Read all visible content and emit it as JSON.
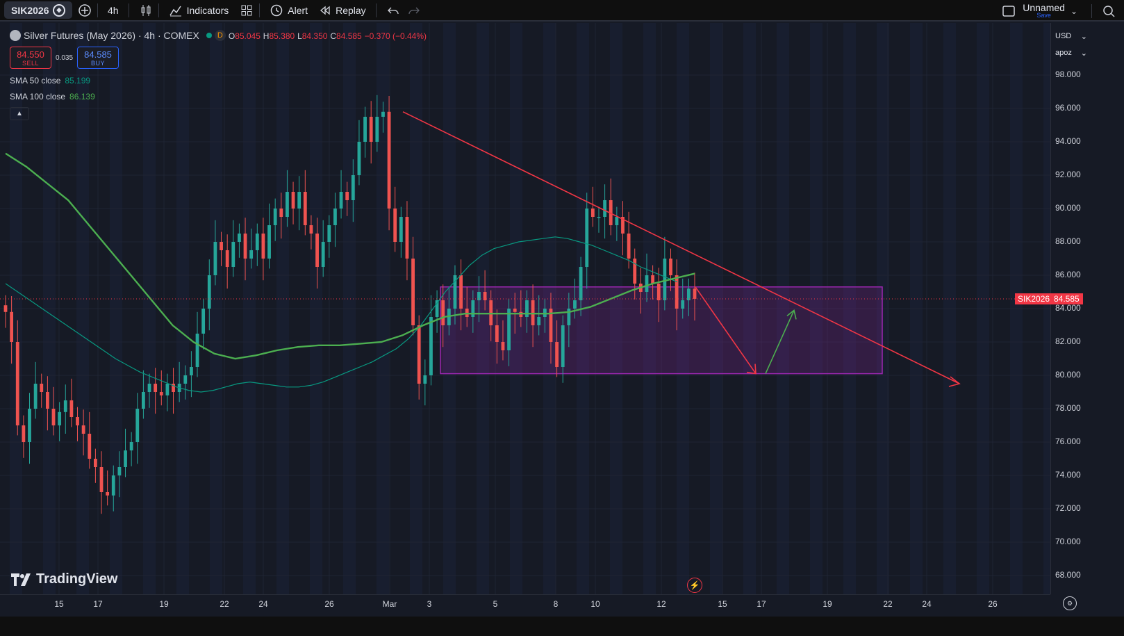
{
  "toolbar": {
    "symbol": "SIK2026",
    "interval": "4h",
    "indicators_label": "Indicators",
    "alert_label": "Alert",
    "replay_label": "Replay",
    "layout_name": "Unnamed",
    "layout_save": "Save"
  },
  "legend": {
    "title": "Silver Futures (May 2026) · 4h · COMEX",
    "market_status_badge": "D",
    "open_label": "O",
    "open": "85.045",
    "high_label": "H",
    "high": "85.380",
    "low_label": "L",
    "low": "84.350",
    "close_label": "C",
    "close": "84.585",
    "change": "−0.370 (−0.44%)",
    "sell_price": "84.550",
    "sell_label": "SELL",
    "spread": "0.035",
    "buy_price": "84.585",
    "buy_label": "BUY",
    "sma50_label": "SMA 50 close",
    "sma50_value": "85.199",
    "sma100_label": "SMA 100 close",
    "sma100_value": "86.139",
    "collapse_icon": "chevron-up-icon"
  },
  "right_axis": {
    "currency": "USD",
    "scale_mode": "apoz",
    "ticks": [
      "98.000",
      "96.000",
      "94.000",
      "92.000",
      "90.000",
      "88.000",
      "86.000",
      "84.000",
      "82.000",
      "80.000",
      "78.000",
      "76.000",
      "74.000",
      "72.000",
      "70.000",
      "68.000"
    ],
    "symbol_tag": "SIK2026",
    "last_price_tag": "84.585"
  },
  "bottom_axis": {
    "ticks": [
      "15",
      "17",
      "19",
      "22",
      "24",
      "26",
      "Mar",
      "3",
      "5",
      "8",
      "10",
      "12",
      "15",
      "17",
      "19",
      "22",
      "24",
      "26"
    ]
  },
  "branding": {
    "name": "TradingView"
  },
  "colors": {
    "background": "#161a25",
    "up": "#26a69a",
    "down": "#ef5350",
    "sma50": "#089981",
    "sma100": "#4caf50",
    "trendline": "#f23645",
    "range_box": "#9c27b0",
    "projection_up": "#4caf50"
  },
  "chart_data": {
    "type": "candlestick",
    "symbol": "SIK2026",
    "interval": "4h",
    "ylim": [
      67,
      99
    ],
    "x_ticks": [
      "15",
      "17",
      "19",
      "22",
      "24",
      "26",
      "Mar",
      "3",
      "5",
      "8",
      "10",
      "12",
      "15",
      "17",
      "19",
      "22",
      "24",
      "26"
    ],
    "last_price": 84.585,
    "candles_close": [
      83.8,
      82.0,
      77.0,
      76.0,
      78.0,
      79.5,
      79.0,
      78.0,
      77.0,
      77.8,
      78.5,
      77.5,
      77.0,
      76.5,
      75.0,
      74.5,
      73.0,
      72.8,
      74.0,
      74.5,
      75.5,
      76.0,
      78.0,
      79.0,
      79.5,
      79.0,
      78.8,
      79.5,
      79.0,
      79.5,
      80.0,
      80.5,
      82.5,
      84.0,
      86.0,
      88.0,
      87.5,
      86.5,
      88.0,
      88.5,
      87.0,
      87.5,
      88.5,
      87.0,
      89.0,
      90.0,
      89.5,
      91.0,
      90.0,
      91.0,
      89.0,
      88.5,
      86.5,
      88.0,
      89.0,
      90.0,
      91.0,
      90.5,
      92.0,
      94.0,
      95.5,
      94.0,
      95.5,
      95.8,
      90.0,
      88.0,
      89.5,
      87.0,
      83.0,
      79.5,
      80.0,
      83.5,
      84.5,
      83.0,
      84.0,
      86.0,
      84.0,
      83.5,
      84.5,
      85.0,
      84.5,
      83.0,
      82.0,
      81.5,
      84.0,
      83.8,
      83.5,
      84.5,
      83.0,
      83.5,
      84.0,
      82.0,
      80.5,
      83.0,
      84.0,
      84.5,
      86.5,
      90.0,
      89.5,
      89.5,
      90.5,
      89.0,
      89.5,
      88.5,
      87.0,
      85.5,
      85.0,
      86.0,
      85.5,
      84.5,
      87.0,
      86.0,
      84.0,
      84.5,
      85.2,
      84.585
    ],
    "sma50": [
      85.5,
      85.0,
      84.5,
      84.0,
      83.5,
      83.0,
      82.5,
      82.0,
      81.5,
      81.0,
      80.6,
      80.2,
      79.9,
      79.6,
      79.3,
      79.1,
      79.0,
      79.1,
      79.3,
      79.5,
      79.6,
      79.5,
      79.4,
      79.3,
      79.3,
      79.4,
      79.6,
      79.9,
      80.2,
      80.5,
      80.8,
      81.2,
      81.6,
      82.2,
      83.0,
      84.0,
      85.0,
      85.8,
      86.6,
      87.2,
      87.6,
      87.8,
      88.0,
      88.1,
      88.2,
      88.3,
      88.2,
      88.0,
      87.8,
      87.5,
      87.2,
      86.9,
      86.5,
      86.2,
      85.9,
      85.6
    ],
    "sma100": [
      93.3,
      92.5,
      91.5,
      90.5,
      89.0,
      87.5,
      86.0,
      84.5,
      83.0,
      82.0,
      81.3,
      81.0,
      81.2,
      81.5,
      81.7,
      81.8,
      81.8,
      81.9,
      82.0,
      82.4,
      83.0,
      83.5,
      83.7,
      83.7,
      83.7,
      83.7,
      83.7,
      83.8,
      84.1,
      84.6,
      85.1,
      85.5,
      85.8,
      86.1
    ],
    "drawings": [
      {
        "type": "trendline",
        "from": [
          "Feb 28",
          95.8
        ],
        "to": [
          "Mar 26",
          79.5
        ]
      },
      {
        "type": "rectangle",
        "price_top": 85.3,
        "price_bottom": 80.1,
        "from": "Mar 3",
        "to": "Mar 22"
      },
      {
        "type": "arrow",
        "from": [
          "Mar 13",
          85.3
        ],
        "to": [
          "Mar 16",
          80.1
        ]
      },
      {
        "type": "arrow",
        "from": [
          "Mar 17",
          80.1
        ],
        "to": [
          "Mar 18",
          83.9
        ]
      }
    ]
  }
}
